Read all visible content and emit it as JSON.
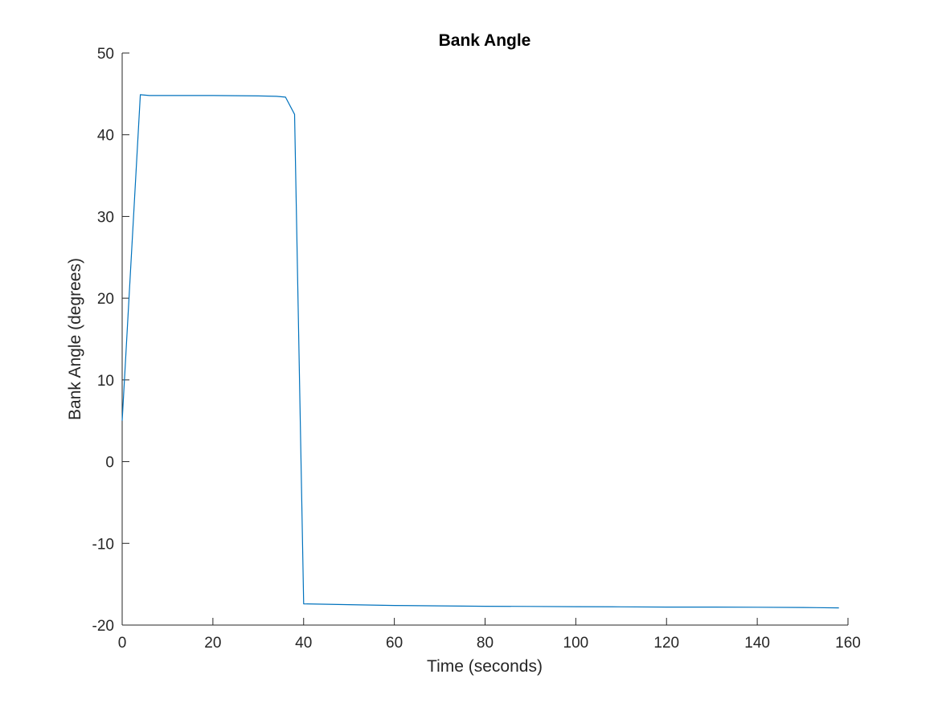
{
  "chart_data": {
    "type": "line",
    "title": "Bank Angle",
    "xlabel": "Time (seconds)",
    "ylabel": "Bank Angle (degrees)",
    "xlim": [
      0,
      160
    ],
    "ylim": [
      -20,
      50
    ],
    "xticks": [
      0,
      20,
      40,
      60,
      80,
      100,
      120,
      140,
      160
    ],
    "yticks": [
      -20,
      -10,
      0,
      10,
      20,
      30,
      40,
      50
    ],
    "xtick_labels": [
      "0",
      "20",
      "40",
      "60",
      "80",
      "100",
      "120",
      "140",
      "160"
    ],
    "ytick_labels": [
      "-20",
      "-10",
      "0",
      "10",
      "20",
      "30",
      "40",
      "50"
    ],
    "grid": false,
    "box": false,
    "line_color": "#0072BD",
    "axis_color": "#262626",
    "series": [
      {
        "x": [
          0,
          4,
          6,
          10,
          20,
          30,
          34,
          36,
          38,
          40,
          50,
          60,
          70,
          80,
          90,
          100,
          110,
          120,
          130,
          140,
          150,
          158
        ],
        "y": [
          5,
          44.9,
          44.8,
          44.8,
          44.8,
          44.75,
          44.7,
          44.6,
          42.5,
          -17.4,
          -17.5,
          -17.6,
          -17.65,
          -17.7,
          -17.72,
          -17.75,
          -17.77,
          -17.8,
          -17.8,
          -17.82,
          -17.85,
          -17.9
        ]
      }
    ]
  }
}
